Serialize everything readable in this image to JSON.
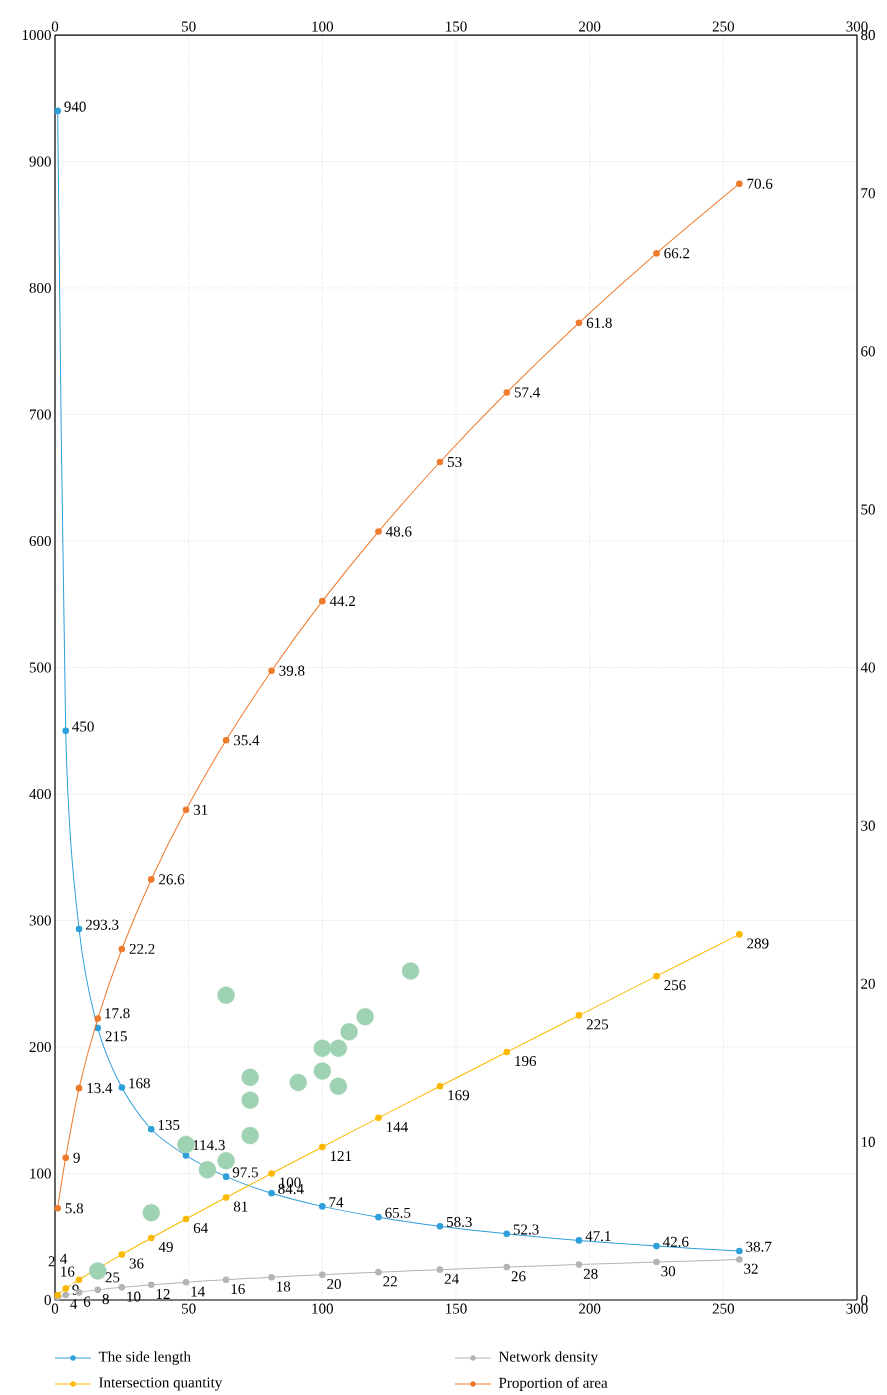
{
  "chart_data": {
    "type": "line",
    "x": [
      1,
      4,
      9,
      16,
      25,
      36,
      49,
      64,
      81,
      100,
      121,
      144,
      169,
      196,
      225,
      256
    ],
    "series": [
      {
        "name": "The side length",
        "color": "#2d9fd9",
        "values": [
          940,
          450,
          293.3,
          215,
          168,
          135,
          114.3,
          97.5,
          84.4,
          74,
          65.5,
          58.3,
          52.3,
          47.1,
          42.6,
          38.7
        ]
      },
      {
        "name": "Network density",
        "color": "#b4b4b4",
        "values": [
          2,
          4,
          6,
          8,
          10,
          12,
          14,
          16,
          18,
          20,
          22,
          24,
          26,
          28,
          30,
          32
        ]
      },
      {
        "name": "Intersection quantity",
        "color": "#fbb800",
        "values": [
          4,
          9,
          16,
          25,
          36,
          49,
          64,
          81,
          100,
          121,
          144,
          169,
          196,
          225,
          256,
          289
        ]
      },
      {
        "name": "Proportion of area",
        "color": "#ee7a2c",
        "axis": "y2",
        "values": [
          5.8,
          9,
          13.4,
          17.8,
          22.2,
          26.6,
          31,
          35.4,
          39.8,
          44.2,
          48.6,
          53,
          57.4,
          61.8,
          66.2,
          70.6
        ]
      },
      {
        "type": "scatter",
        "color": "#9ed2b3",
        "data_labels": false,
        "x": [
          16,
          36,
          49,
          57,
          64,
          64,
          73,
          73,
          73,
          91,
          100,
          100,
          106,
          106,
          110,
          116,
          133
        ],
        "values": [
          23,
          69,
          123,
          103,
          110,
          241,
          176,
          158,
          130,
          172,
          199,
          181,
          199,
          169,
          212,
          224,
          260
        ]
      }
    ],
    "xlim": [
      0,
      300
    ],
    "xticks": [
      0,
      50,
      100,
      150,
      200,
      250,
      300
    ],
    "x2lim": [
      0,
      300
    ],
    "x2ticks": [
      0,
      50,
      100,
      150,
      200,
      250,
      300
    ],
    "ylim": [
      0,
      1000
    ],
    "yticks": [
      0,
      100,
      200,
      300,
      400,
      500,
      600,
      700,
      800,
      900,
      1000
    ],
    "y2lim": [
      0,
      80
    ],
    "y2ticks": [
      0,
      10,
      20,
      30,
      40,
      50,
      60,
      70,
      80
    ],
    "grid": true,
    "legend": "bottom",
    "marker": "circle",
    "line_style": "solid",
    "data_labels": true
  }
}
